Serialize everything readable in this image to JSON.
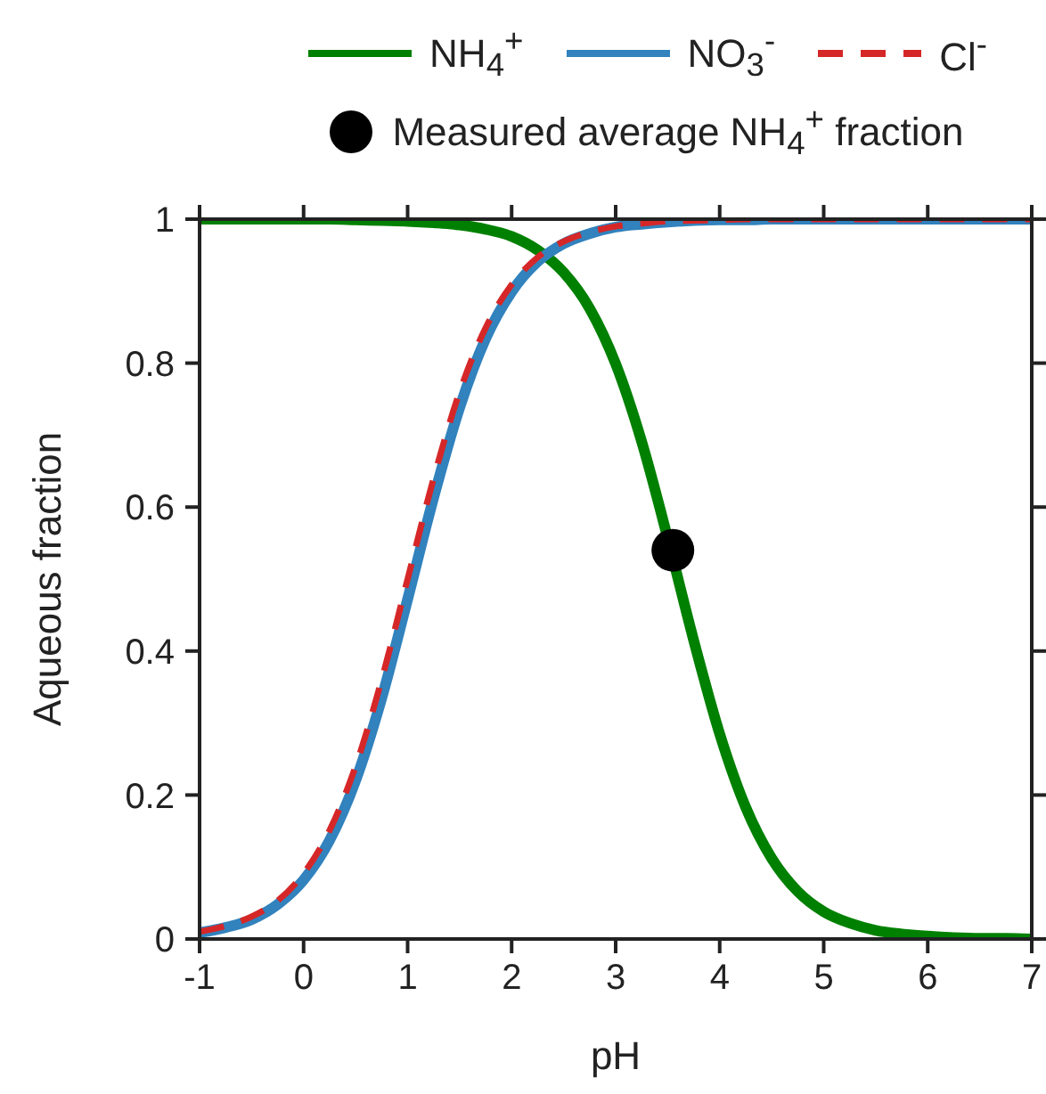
{
  "chart_data": {
    "type": "line",
    "xlabel": "pH",
    "ylabel": "Aqueous fraction",
    "x": [
      -1,
      -0.75,
      -0.5,
      -0.25,
      0,
      0.25,
      0.5,
      0.75,
      1,
      1.25,
      1.5,
      1.75,
      2,
      2.25,
      2.5,
      2.75,
      3,
      3.25,
      3.5,
      3.75,
      4,
      4.25,
      4.5,
      4.75,
      5,
      5.25,
      5.5,
      5.75,
      6,
      6.25,
      6.5,
      6.75,
      7
    ],
    "series": [
      {
        "name": "NH$_{4}$$^{+}$",
        "color": "#008000",
        "line_style": "solid",
        "values": [
          1,
          1,
          1,
          1,
          1,
          1,
          0.999,
          0.998,
          0.997,
          0.995,
          0.992,
          0.986,
          0.976,
          0.957,
          0.926,
          0.876,
          0.799,
          0.691,
          0.557,
          0.415,
          0.285,
          0.183,
          0.112,
          0.066,
          0.038,
          0.022,
          0.012,
          0.007,
          0.004,
          0.002,
          0.001,
          0.001,
          0
        ]
      },
      {
        "name": "NO$_{3}$$^{-}$",
        "color": "#3182bd",
        "line_style": "solid",
        "values": [
          0.009,
          0.016,
          0.027,
          0.048,
          0.082,
          0.137,
          0.22,
          0.334,
          0.472,
          0.613,
          0.738,
          0.834,
          0.899,
          0.941,
          0.966,
          0.98,
          0.989,
          0.993,
          0.996,
          0.998,
          0.999,
          0.999,
          1,
          1,
          1,
          1,
          1,
          1,
          1,
          1,
          1,
          1,
          1
        ]
      },
      {
        "name": "Cl$^{-}$",
        "color": "#d62728",
        "line_style": "dashed",
        "values": [
          0.01,
          0.018,
          0.031,
          0.053,
          0.091,
          0.151,
          0.24,
          0.36,
          0.5,
          0.64,
          0.76,
          0.849,
          0.909,
          0.947,
          0.969,
          0.982,
          0.99,
          0.994,
          0.997,
          0.998,
          0.999,
          1,
          1,
          1,
          1,
          1,
          1,
          1,
          1,
          1,
          1,
          1,
          1
        ]
      },
      {
        "name": "Measured average NH$_{4}$$^{+}$ fraction",
        "type": "scatter",
        "color": "#000000",
        "marker": "circle",
        "x": [
          3.55
        ],
        "values": [
          0.54
        ]
      }
    ],
    "xlim": [
      -1,
      7
    ],
    "xticks": [
      -1,
      0,
      1,
      2,
      3,
      4,
      5,
      6,
      7
    ],
    "ylim": [
      0,
      1
    ],
    "yticks": [
      0,
      0.2,
      0.4,
      0.6,
      0.8,
      1
    ],
    "legend": "top",
    "marker": "none"
  }
}
